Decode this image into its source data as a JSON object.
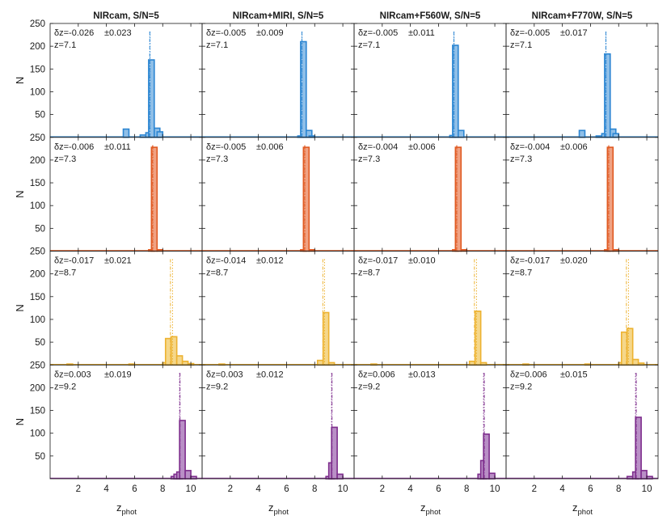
{
  "chart_data": {
    "type": "histogram-grid",
    "rows": 4,
    "cols": 4,
    "bin_width": 0.4,
    "xlim": [
      0,
      10.8
    ],
    "ylim": [
      0,
      250
    ],
    "xticks": [
      2,
      4,
      6,
      8,
      10
    ],
    "yticks": [
      50,
      100,
      150,
      200,
      250
    ],
    "xtick_labels": [
      "2",
      "4",
      "6",
      "8",
      "10"
    ],
    "ytick_labels": [
      "50",
      "100",
      "150",
      "200",
      "250"
    ],
    "ylabel": "N",
    "xlabel_main": "z",
    "xlabel_sub": "phot",
    "col_titles": [
      "NIRcam, S/N=5",
      "NIRcam+MIRI, S/N=5",
      "NIRcam+F560W, S/N=5",
      "NIRcam+F770W, S/N=5"
    ],
    "row_colors": [
      "#2c86d2",
      "#e05a22",
      "#edb230",
      "#7e2e8d"
    ],
    "row_fill_colors": [
      "#8fbfe8",
      "#f0a283",
      "#f5d78a",
      "#b98fc6"
    ],
    "row_true_z": [
      "z=7.1",
      "z=7.3",
      "z=8.7",
      "z=9.2"
    ],
    "row_true_z_values": [
      7.1,
      7.3,
      8.7,
      9.2
    ],
    "panels": [
      [
        {
          "dz": "δz=-0.026",
          "sigma": "±0.023",
          "mean": 7.08,
          "bins": [
            [
              5.2,
              18
            ],
            [
              6.4,
              5
            ],
            [
              6.8,
              10
            ],
            [
              7.0,
              170
            ],
            [
              7.4,
              20
            ],
            [
              7.6,
              12
            ]
          ]
        },
        {
          "dz": "δz=-0.005",
          "sigma": "±0.009",
          "mean": 7.09,
          "bins": [
            [
              6.8,
              3
            ],
            [
              7.0,
              210
            ],
            [
              7.4,
              15
            ],
            [
              7.6,
              3
            ]
          ]
        },
        {
          "dz": "δz=-0.005",
          "sigma": "±0.011",
          "mean": 7.09,
          "bins": [
            [
              6.8,
              4
            ],
            [
              7.0,
              202
            ],
            [
              7.4,
              15
            ]
          ]
        },
        {
          "dz": "δz=-0.005",
          "sigma": "±0.017",
          "mean": 7.09,
          "bins": [
            [
              5.2,
              15
            ],
            [
              6.4,
              3
            ],
            [
              6.8,
              8
            ],
            [
              7.0,
              183
            ],
            [
              7.4,
              18
            ],
            [
              7.6,
              8
            ]
          ]
        }
      ],
      [
        {
          "dz": "δz=-0.006",
          "sigma": "±0.011",
          "mean": 7.28,
          "bins": [
            [
              7.0,
              3
            ],
            [
              7.2,
              228
            ],
            [
              7.6,
              3
            ]
          ]
        },
        {
          "dz": "δz=-0.005",
          "sigma": "±0.006",
          "mean": 7.29,
          "bins": [
            [
              7.0,
              3
            ],
            [
              7.2,
              228
            ],
            [
              7.6,
              3
            ]
          ]
        },
        {
          "dz": "δz=-0.004",
          "sigma": "±0.006",
          "mean": 7.29,
          "bins": [
            [
              7.0,
              3
            ],
            [
              7.2,
              228
            ],
            [
              7.6,
              3
            ]
          ]
        },
        {
          "dz": "δz=-0.004",
          "sigma": "±0.006",
          "mean": 7.29,
          "bins": [
            [
              7.0,
              3
            ],
            [
              7.2,
              228
            ],
            [
              7.6,
              3
            ]
          ]
        }
      ],
      [
        {
          "dz": "δz=-0.017",
          "sigma": "±0.021",
          "mean": 8.55,
          "bins": [
            [
              1.2,
              2
            ],
            [
              5.6,
              2
            ],
            [
              8.0,
              5
            ],
            [
              8.2,
              58
            ],
            [
              8.6,
              62
            ],
            [
              9.0,
              20
            ],
            [
              9.4,
              8
            ],
            [
              9.8,
              3
            ]
          ]
        },
        {
          "dz": "δz=-0.014",
          "sigma": "±0.012",
          "mean": 8.58,
          "bins": [
            [
              1.2,
              2
            ],
            [
              8.2,
              10
            ],
            [
              8.6,
              115
            ],
            [
              9.0,
              5
            ]
          ]
        },
        {
          "dz": "δz=-0.017",
          "sigma": "±0.010",
          "mean": 8.55,
          "bins": [
            [
              1.2,
              2
            ],
            [
              8.2,
              8
            ],
            [
              8.6,
              118
            ],
            [
              9.0,
              5
            ]
          ]
        },
        {
          "dz": "δz=-0.017",
          "sigma": "±0.020",
          "mean": 8.55,
          "bins": [
            [
              1.2,
              2
            ],
            [
              5.6,
              2
            ],
            [
              8.0,
              5
            ],
            [
              8.2,
              72
            ],
            [
              8.6,
              80
            ],
            [
              9.0,
              12
            ],
            [
              9.4,
              4
            ]
          ]
        }
      ],
      [
        {
          "dz": "δz=0.003",
          "sigma": "±0.019",
          "mean": 9.23,
          "bins": [
            [
              8.6,
              5
            ],
            [
              8.8,
              10
            ],
            [
              9.0,
              15
            ],
            [
              9.2,
              128
            ],
            [
              9.6,
              18
            ],
            [
              10.0,
              5
            ]
          ]
        },
        {
          "dz": "δz=0.003",
          "sigma": "±0.012",
          "mean": 9.23,
          "bins": [
            [
              8.8,
              5
            ],
            [
              9.0,
              35
            ],
            [
              9.2,
              113
            ],
            [
              9.6,
              10
            ]
          ]
        },
        {
          "dz": "δz=0.006",
          "sigma": "±0.013",
          "mean": 9.25,
          "bins": [
            [
              8.8,
              10
            ],
            [
              9.0,
              40
            ],
            [
              9.2,
              98
            ],
            [
              9.6,
              12
            ]
          ]
        },
        {
          "dz": "δz=0.006",
          "sigma": "±0.015",
          "mean": 9.25,
          "bins": [
            [
              8.6,
              5
            ],
            [
              9.0,
              15
            ],
            [
              9.2,
              135
            ],
            [
              9.6,
              18
            ],
            [
              10.0,
              5
            ]
          ]
        }
      ]
    ]
  }
}
